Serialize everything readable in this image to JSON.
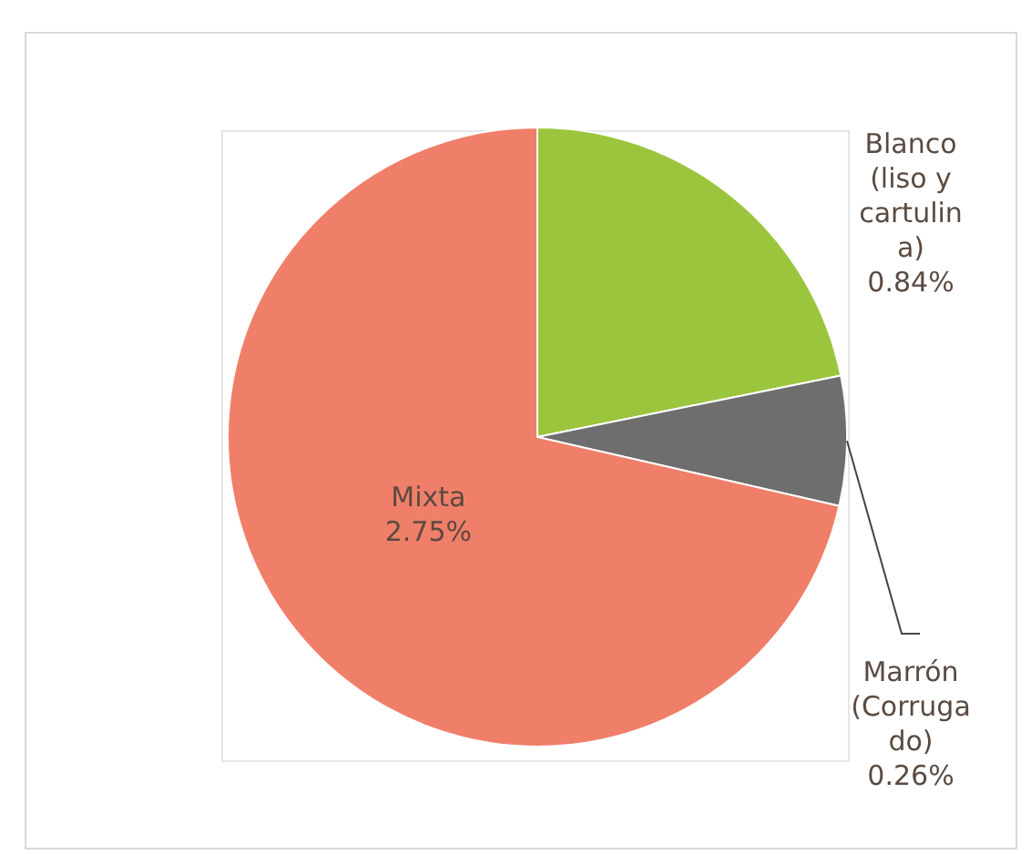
{
  "chart_data": {
    "type": "pie",
    "categories": [
      "Blanco (liso y cartulina)",
      "Marrón (Corrugado)",
      "Mixta"
    ],
    "values": [
      0.84,
      0.26,
      2.75
    ],
    "colors": [
      "#9bc53d",
      "#6e6e6e",
      "#f07f6a"
    ],
    "value_labels": [
      "0.84%",
      "0.26%",
      "2.75%"
    ]
  }
}
